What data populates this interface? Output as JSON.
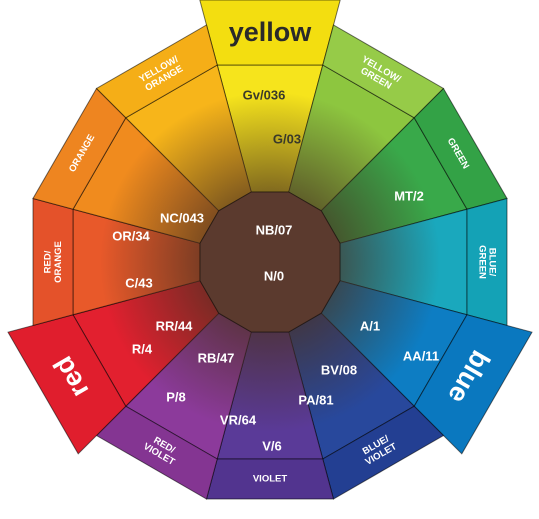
{
  "segments": [
    {
      "lines": [
        "yellow"
      ]
    },
    {
      "lines": [
        "YELLOW/",
        "GREEN"
      ]
    },
    {
      "lines": [
        "GREEN"
      ]
    },
    {
      "lines": [
        "BLUE/",
        "GREEN"
      ]
    },
    {
      "lines": [
        "blue"
      ]
    },
    {
      "lines": [
        "BLUE/",
        "VIOLET"
      ]
    },
    {
      "lines": [
        "VIOLET"
      ]
    },
    {
      "lines": [
        "RED/",
        "VIOLET"
      ]
    },
    {
      "lines": [
        "red"
      ]
    },
    {
      "lines": [
        "RED/",
        "ORANGE"
      ]
    },
    {
      "lines": [
        "ORANGE"
      ]
    },
    {
      "lines": [
        "YELLOW/",
        "ORANGE"
      ]
    }
  ],
  "codes": [
    "Gv/036",
    "G/03",
    "MT/2",
    "NC/043",
    "OR/34",
    "NB/07",
    "N/0",
    "C/43",
    "RR/44",
    "R/4",
    "RB/47",
    "A/1",
    "AA/11",
    "BV/08",
    "PA/81",
    "P/8",
    "VR/64",
    "V/6"
  ]
}
